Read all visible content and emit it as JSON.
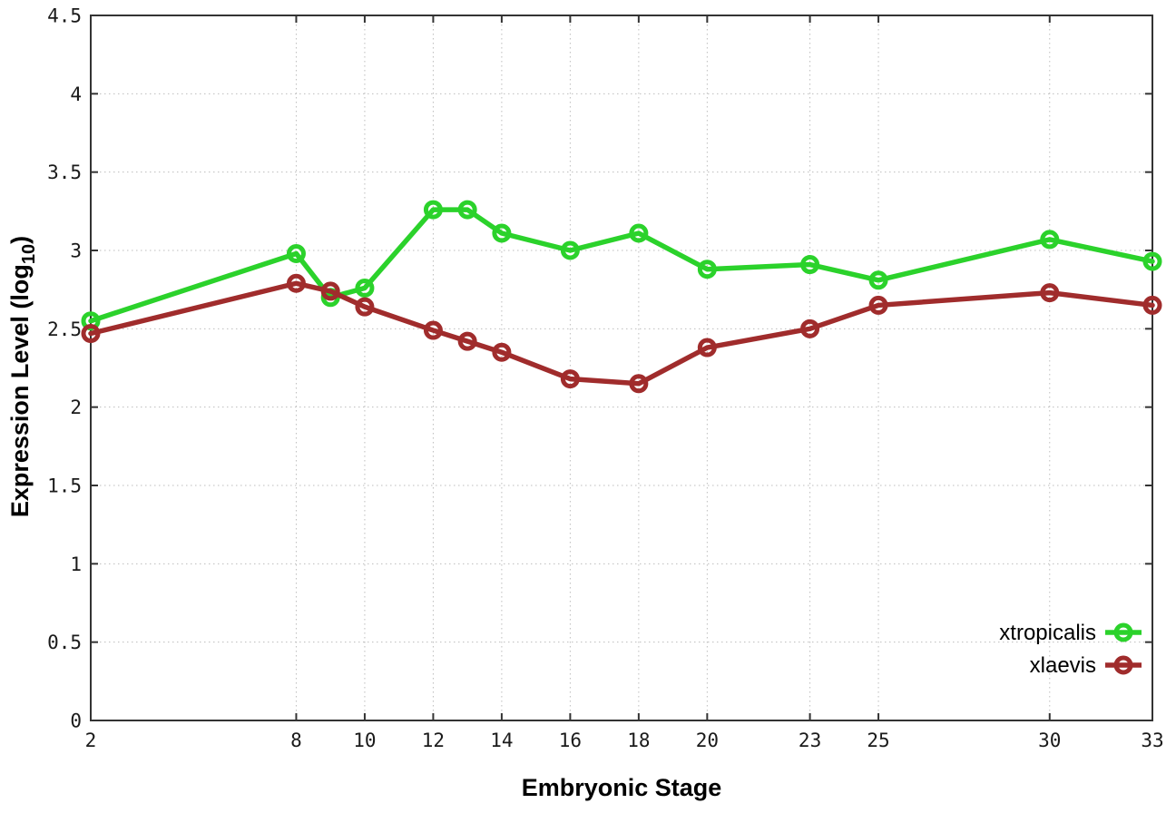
{
  "chart_data": {
    "type": "line",
    "title": "",
    "xlabel": "Embryonic Stage",
    "ylabel_parts": [
      "Expression Level (log",
      "10",
      ")"
    ],
    "x": [
      2,
      8,
      9,
      10,
      12,
      13,
      14,
      16,
      18,
      20,
      23,
      25,
      30,
      33
    ],
    "series": [
      {
        "name": "xtropicalis",
        "color": "#2bd22b",
        "values": [
          2.55,
          2.98,
          2.7,
          2.76,
          3.26,
          3.26,
          3.11,
          3.0,
          3.11,
          2.88,
          2.91,
          2.81,
          3.07,
          2.93
        ]
      },
      {
        "name": "xlaevis",
        "color": "#a02c2c",
        "values": [
          2.47,
          2.79,
          2.74,
          2.64,
          2.49,
          2.42,
          2.35,
          2.18,
          2.15,
          2.38,
          2.5,
          2.65,
          2.73,
          2.65
        ]
      }
    ],
    "xlim": [
      2,
      33
    ],
    "ylim": [
      0,
      4.5
    ],
    "xticks": [
      2,
      8,
      10,
      12,
      14,
      16,
      18,
      20,
      23,
      25,
      30,
      33
    ],
    "yticks": [
      0,
      0.5,
      1,
      1.5,
      2,
      2.5,
      3,
      3.5,
      4,
      4.5
    ],
    "grid": true,
    "legend_position": "bottom-right",
    "colors": {
      "background": "#ffffff",
      "border": "#333333",
      "grid": "#bdbdbd",
      "tick_text": "#1a1a1a"
    }
  }
}
